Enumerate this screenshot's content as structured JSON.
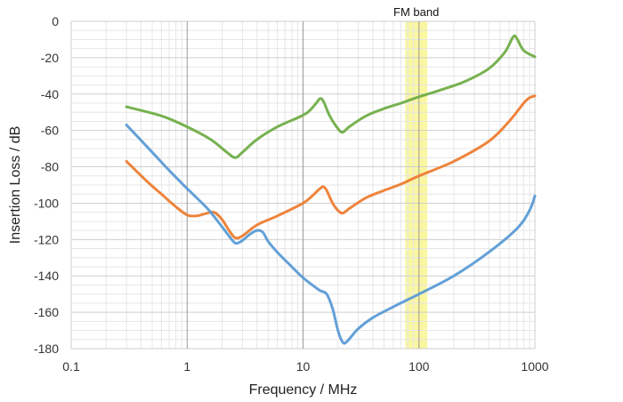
{
  "chart_data": {
    "type": "line",
    "xlabel": "Frequency / MHz",
    "ylabel": "Insertion Loss / dB",
    "x_scale": "log",
    "xlim": [
      0.1,
      1000
    ],
    "ylim": [
      -180,
      0
    ],
    "x_ticks": [
      "0.1",
      "1",
      "10",
      "100",
      "1000"
    ],
    "y_ticks": [
      "0",
      "-20",
      "-40",
      "-60",
      "-80",
      "-100",
      "-120",
      "-140",
      "-160",
      "-180"
    ],
    "grid": true,
    "band": {
      "label": "FM band",
      "x_from": 76,
      "x_to": 118,
      "color": "#faf7a0"
    },
    "series": [
      {
        "color": "#70ad47",
        "points": [
          [
            0.3,
            -47
          ],
          [
            0.6,
            -52
          ],
          [
            1,
            -58
          ],
          [
            1.6,
            -65
          ],
          [
            2.2,
            -72
          ],
          [
            2.6,
            -75
          ],
          [
            3,
            -72
          ],
          [
            4,
            -65
          ],
          [
            6,
            -58
          ],
          [
            9,
            -53
          ],
          [
            11,
            -50
          ],
          [
            13,
            -45
          ],
          [
            14,
            -42.5
          ],
          [
            15,
            -44
          ],
          [
            17,
            -52
          ],
          [
            20,
            -59
          ],
          [
            22,
            -61
          ],
          [
            25,
            -58
          ],
          [
            35,
            -52
          ],
          [
            50,
            -48
          ],
          [
            70,
            -45
          ],
          [
            100,
            -41.5
          ],
          [
            150,
            -38
          ],
          [
            250,
            -33
          ],
          [
            400,
            -26
          ],
          [
            550,
            -17
          ],
          [
            650,
            -8.5
          ],
          [
            700,
            -9.5
          ],
          [
            800,
            -16
          ],
          [
            1000,
            -19.5
          ]
        ]
      },
      {
        "color": "#ed7d31",
        "points": [
          [
            0.3,
            -77
          ],
          [
            0.45,
            -88
          ],
          [
            0.6,
            -95
          ],
          [
            0.8,
            -102
          ],
          [
            1,
            -106.5
          ],
          [
            1.2,
            -107
          ],
          [
            1.4,
            -106
          ],
          [
            1.7,
            -105
          ],
          [
            2,
            -109
          ],
          [
            2.3,
            -115
          ],
          [
            2.6,
            -119
          ],
          [
            3,
            -118
          ],
          [
            4,
            -112
          ],
          [
            6,
            -107
          ],
          [
            10,
            -100
          ],
          [
            12,
            -96
          ],
          [
            14,
            -92
          ],
          [
            15,
            -91
          ],
          [
            16,
            -93
          ],
          [
            18,
            -100
          ],
          [
            20,
            -104
          ],
          [
            22,
            -105.5
          ],
          [
            25,
            -103
          ],
          [
            35,
            -97
          ],
          [
            50,
            -93
          ],
          [
            70,
            -89.5
          ],
          [
            100,
            -85
          ],
          [
            200,
            -77
          ],
          [
            400,
            -66
          ],
          [
            600,
            -55
          ],
          [
            800,
            -45
          ],
          [
            900,
            -42
          ],
          [
            1000,
            -41
          ]
        ]
      },
      {
        "color": "#5b9bd5",
        "points": [
          [
            0.3,
            -57
          ],
          [
            0.5,
            -72
          ],
          [
            0.7,
            -82
          ],
          [
            1,
            -92
          ],
          [
            1.5,
            -103
          ],
          [
            2,
            -113
          ],
          [
            2.5,
            -121
          ],
          [
            2.7,
            -122
          ],
          [
            3,
            -120.5
          ],
          [
            3.5,
            -117
          ],
          [
            4,
            -115
          ],
          [
            4.5,
            -116
          ],
          [
            5,
            -121
          ],
          [
            6,
            -127
          ],
          [
            8,
            -135
          ],
          [
            10,
            -141
          ],
          [
            12,
            -145
          ],
          [
            14,
            -148
          ],
          [
            16,
            -150
          ],
          [
            18,
            -158
          ],
          [
            20,
            -170
          ],
          [
            22,
            -176.5
          ],
          [
            24,
            -176
          ],
          [
            30,
            -169
          ],
          [
            40,
            -163
          ],
          [
            60,
            -157
          ],
          [
            100,
            -150
          ],
          [
            200,
            -140
          ],
          [
            400,
            -127
          ],
          [
            700,
            -114
          ],
          [
            900,
            -104
          ],
          [
            1000,
            -96
          ]
        ]
      }
    ]
  }
}
